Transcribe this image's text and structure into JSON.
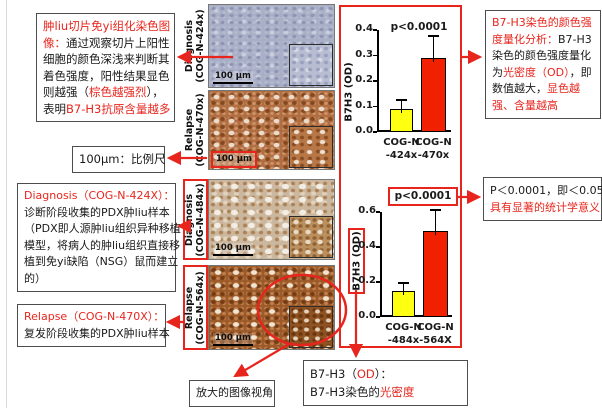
{
  "colors": {
    "red": "#e8251d",
    "bar_yellow": "#ffff12",
    "bar_red": "#f02000",
    "text": "#1a1a1a"
  },
  "notes": {
    "ihc_explanation": {
      "lines": [
        [
          {
            "t": "肿liu切片免yi组化染色图",
            "c": "r"
          }
        ],
        [
          {
            "t": "像：",
            "c": "r"
          },
          {
            "t": "通过观察切片上阳性"
          }
        ],
        [
          {
            "t": "细胞的颜色深浅来判断其"
          }
        ],
        [
          {
            "t": "着色强度，阳性结果显色"
          }
        ],
        [
          {
            "t": "则越强（"
          },
          {
            "t": "棕色越强烈",
            "c": "r"
          },
          {
            "t": "），"
          }
        ],
        [
          {
            "t": "表明"
          },
          {
            "t": "B7-H3抗原含量越多",
            "c": "r"
          }
        ]
      ]
    },
    "scalebar": {
      "lines": [
        [
          {
            "t": "100μm：比例尺"
          }
        ]
      ]
    },
    "diagnosis_424x": {
      "lines": [
        [
          {
            "t": "Diagnosis（COG-N-424X）：",
            "c": "r"
          }
        ],
        [
          {
            "t": "诊断阶段收集的PDX肿liu样本"
          }
        ],
        [
          {
            "t": "（PDX即人源肿liu组织异种移植"
          }
        ],
        [
          {
            "t": "模型，将病人的肿liu组织直接移"
          }
        ],
        [
          {
            "t": "植到免yi缺陷（NSG）鼠而建立"
          }
        ],
        [
          {
            "t": "的）"
          }
        ]
      ]
    },
    "relapse_470x": {
      "lines": [
        [
          {
            "t": "Relapse（COG-N-470X）：",
            "c": "r"
          }
        ],
        [
          {
            "t": "复发阶段收集的PDX肿liu样本"
          }
        ]
      ]
    },
    "zoom_view": {
      "lines": [
        [
          {
            "t": "放大的图像视角"
          }
        ]
      ]
    },
    "od_definition": {
      "lines": [
        [
          {
            "t": "B7-H3（"
          },
          {
            "t": "OD",
            "c": "r"
          },
          {
            "t": "）："
          }
        ],
        [
          {
            "t": "B7-H3染色的"
          },
          {
            "t": "光密度",
            "c": "r"
          }
        ]
      ]
    },
    "quantification": {
      "lines": [
        [
          {
            "t": "B7-H3染色的颜色强",
            "c": "r"
          }
        ],
        [
          {
            "t": "度量化分析：",
            "c": "r"
          },
          {
            "t": "B7-H3"
          }
        ],
        [
          {
            "t": "染色的颜色强度量化"
          }
        ],
        [
          {
            "t": "为"
          },
          {
            "t": "光密度（OD）",
            "c": "r"
          },
          {
            "t": "，即"
          }
        ],
        [
          {
            "t": "数值越大，",
            "c": ""
          },
          {
            "t": "显色越",
            "c": "r"
          }
        ],
        [
          {
            "t": "强、含量越高",
            "c": "r"
          }
        ]
      ]
    },
    "pvalue": {
      "lines": [
        [
          {
            "t": "P＜0.0001，即＜0.05"
          }
        ],
        [
          {
            "t": "具有显著的统计学意义",
            "c": "r"
          }
        ]
      ]
    }
  },
  "panels": [
    {
      "stage": "Diagnosis",
      "code": "(COG-N-424x)",
      "scale_label": "100 μm"
    },
    {
      "stage": "Relapse",
      "code": "(COG-N-470x)",
      "scale_label": "100 μm"
    },
    {
      "stage": "Diagnosis",
      "code": "(COG-N-484x)",
      "scale_label": "100 μm"
    },
    {
      "stage": "Relapse",
      "code": "(COG-N-564x)",
      "scale_label": "100 μm"
    }
  ],
  "chart_data": [
    {
      "type": "bar",
      "annotation": "p<0.0001",
      "annotation_boxed": false,
      "ylabel": "B7H3 (OD)",
      "ylabel_boxed": false,
      "ylim": [
        0,
        0.4
      ],
      "yticks": [
        0.0,
        0.1,
        0.2,
        0.3,
        0.4
      ],
      "categories": [
        [
          "COG-N",
          "-424x"
        ],
        [
          "COG-N",
          "-470x"
        ]
      ],
      "values": [
        0.09,
        0.29
      ],
      "errors": [
        0.035,
        0.085
      ],
      "bar_colors": [
        "#ffff12",
        "#f02000"
      ]
    },
    {
      "type": "bar",
      "annotation": "p<0.0001",
      "annotation_boxed": true,
      "ylabel": "B7H3 (OD)",
      "ylabel_boxed": true,
      "ylim": [
        0,
        0.6
      ],
      "yticks": [
        0.0,
        0.2,
        0.4,
        0.6
      ],
      "categories": [
        [
          "COG-N",
          "-484x"
        ],
        [
          "COG-N",
          "-564X"
        ]
      ],
      "values": [
        0.15,
        0.49
      ],
      "errors": [
        0.045,
        0.12
      ],
      "bar_colors": [
        "#ffff12",
        "#f02000"
      ]
    }
  ]
}
